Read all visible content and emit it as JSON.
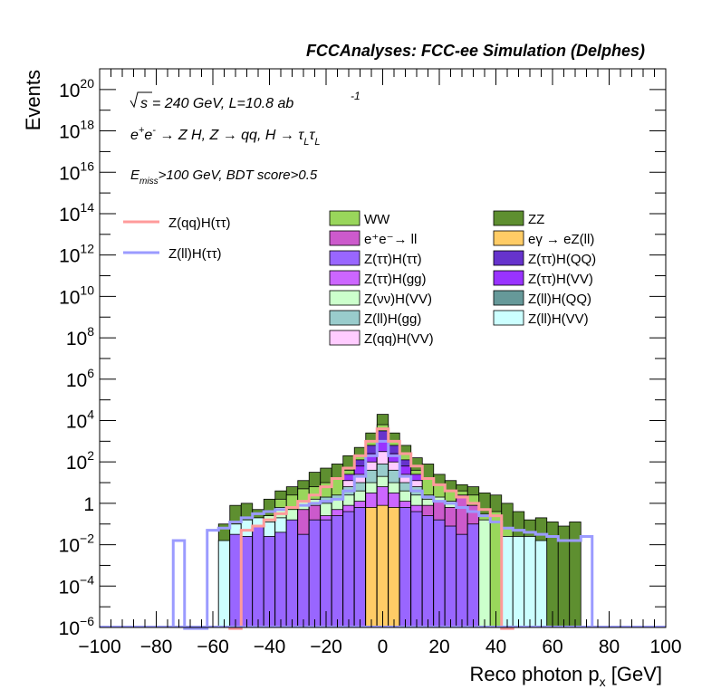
{
  "chart_data": {
    "type": "bar",
    "title": "FCCAnalyses: FCC-ee Simulation (Delphes)",
    "xlabel": "Reco photon p",
    "xlabel_sub": "x",
    "xlabel_unit": " [GeV]",
    "ylabel": "Events",
    "xlim": [
      -100,
      100
    ],
    "ylim_log10": [
      -6,
      21
    ],
    "yscale": "log",
    "bin_width": 4,
    "x_tick_values": [
      -100,
      -80,
      -60,
      -40,
      -20,
      0,
      20,
      40,
      60,
      80,
      100
    ],
    "y_tick_exponents": [
      -6,
      -4,
      -2,
      0,
      2,
      4,
      6,
      8,
      10,
      12,
      14,
      16,
      18,
      20
    ],
    "annotations": {
      "energy_line": "= 240 GeV, L=10.8 ab",
      "energy_sqrt": "s",
      "lumi_exp": "-1",
      "process_line": "e⁺e⁻ → Z H, Z → qq, H → τ_L τ_L",
      "process_prefix": "e",
      "process_body": " → Z H, Z  → qq, H  → ",
      "tau": "τ",
      "tau_sub": "L",
      "cuts_E": "E",
      "cuts_sub": "miss",
      "cuts_rest": ">100 GeV, BDT score>0.5"
    },
    "legend_signals": [
      {
        "name": "Z(qq)H(ττ)",
        "color": "#ff9b9b"
      },
      {
        "name": "Z(ll)H(ττ)",
        "color": "#9b9bff"
      }
    ],
    "legend_backgrounds": [
      {
        "name": "WW",
        "color": "#99d65b"
      },
      {
        "name": "ZZ",
        "color": "#5e8f30"
      },
      {
        "name": "e⁺e⁻→ ll",
        "color": "#cc5acc"
      },
      {
        "name": "eγ → eZ(ll)",
        "color": "#ffcc66"
      },
      {
        "name": "Z(ττ)H(ττ)",
        "color": "#9966ff"
      },
      {
        "name": "Z(ττ)H(QQ)",
        "color": "#6633cc"
      },
      {
        "name": "Z(ττ)H(gg)",
        "color": "#cc66ff"
      },
      {
        "name": "Z(ττ)H(VV)",
        "color": "#9933ff"
      },
      {
        "name": "Z(νν)H(VV)",
        "color": "#ccffcc"
      },
      {
        "name": "Z(ll)H(QQ)",
        "color": "#669999"
      },
      {
        "name": "Z(ll)H(gg)",
        "color": "#99cccc"
      },
      {
        "name": "Z(ll)H(VV)",
        "color": "#ccffff"
      },
      {
        "name": "Z(qq)H(VV)",
        "color": "#ffccff"
      }
    ],
    "stack_bins": [
      {
        "x": -56,
        "top": -1.0,
        "bands": [
          [
            "#ccffff",
            -1.8
          ]
        ]
      },
      {
        "x": -52,
        "top": -0.1,
        "bands": [
          [
            "#9966ff",
            -1.5
          ],
          [
            "#ccffff",
            -1.0
          ]
        ]
      },
      {
        "x": -48,
        "top": 0.0,
        "bands": [
          [
            "#9966ff",
            -1.6
          ],
          [
            "#ccffff",
            -0.8
          ]
        ]
      },
      {
        "x": -44,
        "top": -0.3,
        "bands": [
          [
            "#9966ff",
            -1.1
          ],
          [
            "#ccffff",
            -0.7
          ]
        ]
      },
      {
        "x": -40,
        "top": 0.2,
        "bands": [
          [
            "#9966ff",
            -1.6
          ],
          [
            "#ccffff",
            -0.9
          ],
          [
            "#ccffcc",
            -0.6
          ]
        ]
      },
      {
        "x": -36,
        "top": 0.6,
        "bands": [
          [
            "#9966ff",
            -1.4
          ],
          [
            "#ccffff",
            -0.7
          ],
          [
            "#ccffcc",
            -0.2
          ],
          [
            "#99d65b",
            0.2
          ]
        ]
      },
      {
        "x": -32,
        "top": 0.8,
        "bands": [
          [
            "#9966ff",
            -0.8
          ],
          [
            "#ccffcc",
            -0.3
          ],
          [
            "#99d65b",
            0.4
          ]
        ]
      },
      {
        "x": -28,
        "top": 1.1,
        "bands": [
          [
            "#9966ff",
            -1.5
          ],
          [
            "#cc5acc",
            -0.3
          ],
          [
            "#ccffcc",
            0.1
          ],
          [
            "#99d65b",
            0.7
          ]
        ]
      },
      {
        "x": -24,
        "top": 1.5,
        "bands": [
          [
            "#9966ff",
            -0.8
          ],
          [
            "#cc5acc",
            -0.1
          ],
          [
            "#ccffcc",
            0.2
          ],
          [
            "#99d65b",
            0.8
          ]
        ]
      },
      {
        "x": -20,
        "top": 1.7,
        "bands": [
          [
            "#9966ff",
            -0.8
          ],
          [
            "#cc66ff",
            -0.6
          ],
          [
            "#ccffcc",
            0.0
          ],
          [
            "#99cccc",
            0.3
          ],
          [
            "#99d65b",
            1.0
          ]
        ]
      },
      {
        "x": -16,
        "top": 1.9,
        "bands": [
          [
            "#9966ff",
            -0.6
          ],
          [
            "#cc66ff",
            -0.3
          ],
          [
            "#ccffcc",
            0.2
          ],
          [
            "#99cccc",
            0.4
          ],
          [
            "#99d65b",
            1.2
          ]
        ]
      },
      {
        "x": -12,
        "top": 2.3,
        "bands": [
          [
            "#9966ff",
            -0.4
          ],
          [
            "#cc66ff",
            -0.1
          ],
          [
            "#ccffcc",
            0.4
          ],
          [
            "#99cccc",
            0.8
          ],
          [
            "#ffccff",
            1.1
          ],
          [
            "#9933ff",
            1.4
          ],
          [
            "#99d65b",
            1.6
          ]
        ]
      },
      {
        "x": -8,
        "top": 2.7,
        "bands": [
          [
            "#9966ff",
            -0.2
          ],
          [
            "#cc66ff",
            0.1
          ],
          [
            "#ccffcc",
            0.6
          ],
          [
            "#99cccc",
            1.0
          ],
          [
            "#ffccff",
            1.4
          ],
          [
            "#9933ff",
            1.8
          ],
          [
            "#6633cc",
            2.1
          ],
          [
            "#99d65b",
            2.3
          ]
        ]
      },
      {
        "x": -4,
        "top": 3.4,
        "bands": [
          [
            "#ffcc66",
            -0.2
          ],
          [
            "#cc66ff",
            0.5
          ],
          [
            "#ccffcc",
            1.0
          ],
          [
            "#99cccc",
            1.6
          ],
          [
            "#ffccff",
            2.0
          ],
          [
            "#9933ff",
            2.4
          ],
          [
            "#6633cc",
            2.8
          ],
          [
            "#99d65b",
            3.0
          ]
        ]
      },
      {
        "x": 0,
        "top": 4.3,
        "bands": [
          [
            "#ffcc66",
            -0.1
          ],
          [
            "#cc66ff",
            0.8
          ],
          [
            "#ccffcc",
            1.3
          ],
          [
            "#99cccc",
            1.9
          ],
          [
            "#ffccff",
            2.5
          ],
          [
            "#9933ff",
            3.0
          ],
          [
            "#6633cc",
            3.5
          ],
          [
            "#99d65b",
            3.8
          ]
        ]
      },
      {
        "x": 4,
        "top": 3.4,
        "bands": [
          [
            "#ffcc66",
            -0.2
          ],
          [
            "#cc66ff",
            0.5
          ],
          [
            "#ccffcc",
            1.0
          ],
          [
            "#99cccc",
            1.6
          ],
          [
            "#ffccff",
            2.0
          ],
          [
            "#9933ff",
            2.4
          ],
          [
            "#6633cc",
            2.8
          ],
          [
            "#99d65b",
            3.0
          ]
        ]
      },
      {
        "x": 8,
        "top": 2.8,
        "bands": [
          [
            "#9966ff",
            -0.2
          ],
          [
            "#cc66ff",
            0.1
          ],
          [
            "#ccffcc",
            0.6
          ],
          [
            "#99cccc",
            1.0
          ],
          [
            "#ffccff",
            1.4
          ],
          [
            "#9933ff",
            1.8
          ],
          [
            "#6633cc",
            2.1
          ],
          [
            "#99d65b",
            2.4
          ]
        ]
      },
      {
        "x": 12,
        "top": 2.2,
        "bands": [
          [
            "#9966ff",
            -0.4
          ],
          [
            "#cc66ff",
            -0.1
          ],
          [
            "#ccffcc",
            0.4
          ],
          [
            "#99cccc",
            0.8
          ],
          [
            "#ffccff",
            1.1
          ],
          [
            "#9933ff",
            1.4
          ],
          [
            "#99d65b",
            1.6
          ]
        ]
      },
      {
        "x": 16,
        "top": 1.9,
        "bands": [
          [
            "#9966ff",
            -0.6
          ],
          [
            "#cc5acc",
            -0.1
          ],
          [
            "#ccffcc",
            0.2
          ],
          [
            "#99cccc",
            0.4
          ],
          [
            "#99d65b",
            1.2
          ]
        ]
      },
      {
        "x": 20,
        "top": 1.4,
        "bands": [
          [
            "#9966ff",
            -0.8
          ],
          [
            "#cc5acc",
            0.1
          ],
          [
            "#ccffcc",
            0.3
          ],
          [
            "#99d65b",
            0.9
          ]
        ]
      },
      {
        "x": 24,
        "top": 1.1,
        "bands": [
          [
            "#9966ff",
            -1.1
          ],
          [
            "#cc5acc",
            -0.2
          ],
          [
            "#ccffcc",
            0.1
          ],
          [
            "#99d65b",
            0.6
          ]
        ]
      },
      {
        "x": 28,
        "top": 0.9,
        "bands": [
          [
            "#9966ff",
            -1.5
          ],
          [
            "#cc5acc",
            0.4
          ],
          [
            "#99d65b",
            0.6
          ]
        ]
      },
      {
        "x": 32,
        "top": 0.8,
        "bands": [
          [
            "#9966ff",
            -1.0
          ],
          [
            "#cc5acc",
            -0.1
          ],
          [
            "#99d65b",
            0.4
          ]
        ]
      },
      {
        "x": 36,
        "top": 0.5,
        "bands": [
          [
            "#ccffcc",
            -0.8
          ],
          [
            "#99d65b",
            -0.5
          ]
        ]
      },
      {
        "x": 40,
        "top": 0.4,
        "bands": [
          [
            "#99d65b",
            -0.4
          ]
        ]
      },
      {
        "x": 44,
        "top": 0.0,
        "bands": [
          [
            "#ccffff",
            -1.6
          ],
          [
            "#99d65b",
            -1.2
          ]
        ]
      },
      {
        "x": 48,
        "top": -0.4,
        "bands": [
          [
            "#ccffff",
            -1.6
          ]
        ]
      },
      {
        "x": 52,
        "top": -0.8,
        "bands": [
          [
            "#ccffff",
            -1.6
          ]
        ]
      },
      {
        "x": 56,
        "top": -0.7,
        "bands": [
          [
            "#ccffff",
            -1.8
          ]
        ]
      },
      {
        "x": 60,
        "top": -0.9,
        "bands": []
      },
      {
        "x": 64,
        "top": -1.1,
        "bands": []
      },
      {
        "x": 68,
        "top": -0.9,
        "bands": []
      }
    ],
    "signal_qq_tautau": [
      {
        "x": -52,
        "y": -6.5
      },
      {
        "x": -48,
        "y": -1.3
      },
      {
        "x": -44,
        "y": -1.1
      },
      {
        "x": -40,
        "y": -0.8
      },
      {
        "x": -36,
        "y": -0.5
      },
      {
        "x": -32,
        "y": -0.2
      },
      {
        "x": -28,
        "y": 0.1
      },
      {
        "x": -24,
        "y": 0.4
      },
      {
        "x": -20,
        "y": 0.8
      },
      {
        "x": -16,
        "y": 1.2
      },
      {
        "x": -12,
        "y": 1.7
      },
      {
        "x": -8,
        "y": 2.3
      },
      {
        "x": -4,
        "y": 3.0
      },
      {
        "x": 0,
        "y": 3.6
      },
      {
        "x": 4,
        "y": 3.0
      },
      {
        "x": 8,
        "y": 2.4
      },
      {
        "x": 12,
        "y": 1.8
      },
      {
        "x": 16,
        "y": 1.2
      },
      {
        "x": 20,
        "y": 0.9
      },
      {
        "x": 24,
        "y": 0.6
      },
      {
        "x": 28,
        "y": 0.3
      },
      {
        "x": 32,
        "y": 0.0
      },
      {
        "x": 36,
        "y": -0.3
      },
      {
        "x": 40,
        "y": -0.6
      },
      {
        "x": 44,
        "y": -6.5
      }
    ],
    "signal_ll_tautau": [
      {
        "x": -72,
        "y": -1.8
      },
      {
        "x": -68,
        "y": -6.5
      },
      {
        "x": -64,
        "y": -6.5
      },
      {
        "x": -60,
        "y": -1.3
      },
      {
        "x": -56,
        "y": -1.2
      },
      {
        "x": -52,
        "y": -0.9
      },
      {
        "x": -48,
        "y": -0.7
      },
      {
        "x": -44,
        "y": -0.5
      },
      {
        "x": -40,
        "y": -0.4
      },
      {
        "x": -36,
        "y": -0.3
      },
      {
        "x": -32,
        "y": -0.2
      },
      {
        "x": -28,
        "y": -0.1
      },
      {
        "x": -24,
        "y": 0.0
      },
      {
        "x": -20,
        "y": 0.1
      },
      {
        "x": -16,
        "y": 0.2
      },
      {
        "x": -12,
        "y": 0.6
      },
      {
        "x": -8,
        "y": 1.3
      },
      {
        "x": -4,
        "y": 2.3
      },
      {
        "x": 0,
        "y": 3.0
      },
      {
        "x": 4,
        "y": 2.3
      },
      {
        "x": 8,
        "y": 1.3
      },
      {
        "x": 12,
        "y": 0.6
      },
      {
        "x": 16,
        "y": 0.3
      },
      {
        "x": 20,
        "y": 0.1
      },
      {
        "x": 24,
        "y": 0.0
      },
      {
        "x": 28,
        "y": -0.2
      },
      {
        "x": 32,
        "y": -0.4
      },
      {
        "x": 36,
        "y": -0.6
      },
      {
        "x": 40,
        "y": -0.9
      },
      {
        "x": 44,
        "y": -1.2
      },
      {
        "x": 48,
        "y": -1.3
      },
      {
        "x": 52,
        "y": -1.4
      },
      {
        "x": 56,
        "y": -1.5
      },
      {
        "x": 60,
        "y": -1.6
      },
      {
        "x": 64,
        "y": -1.8
      },
      {
        "x": 68,
        "y": -1.8
      },
      {
        "x": 72,
        "y": -1.6
      }
    ]
  }
}
